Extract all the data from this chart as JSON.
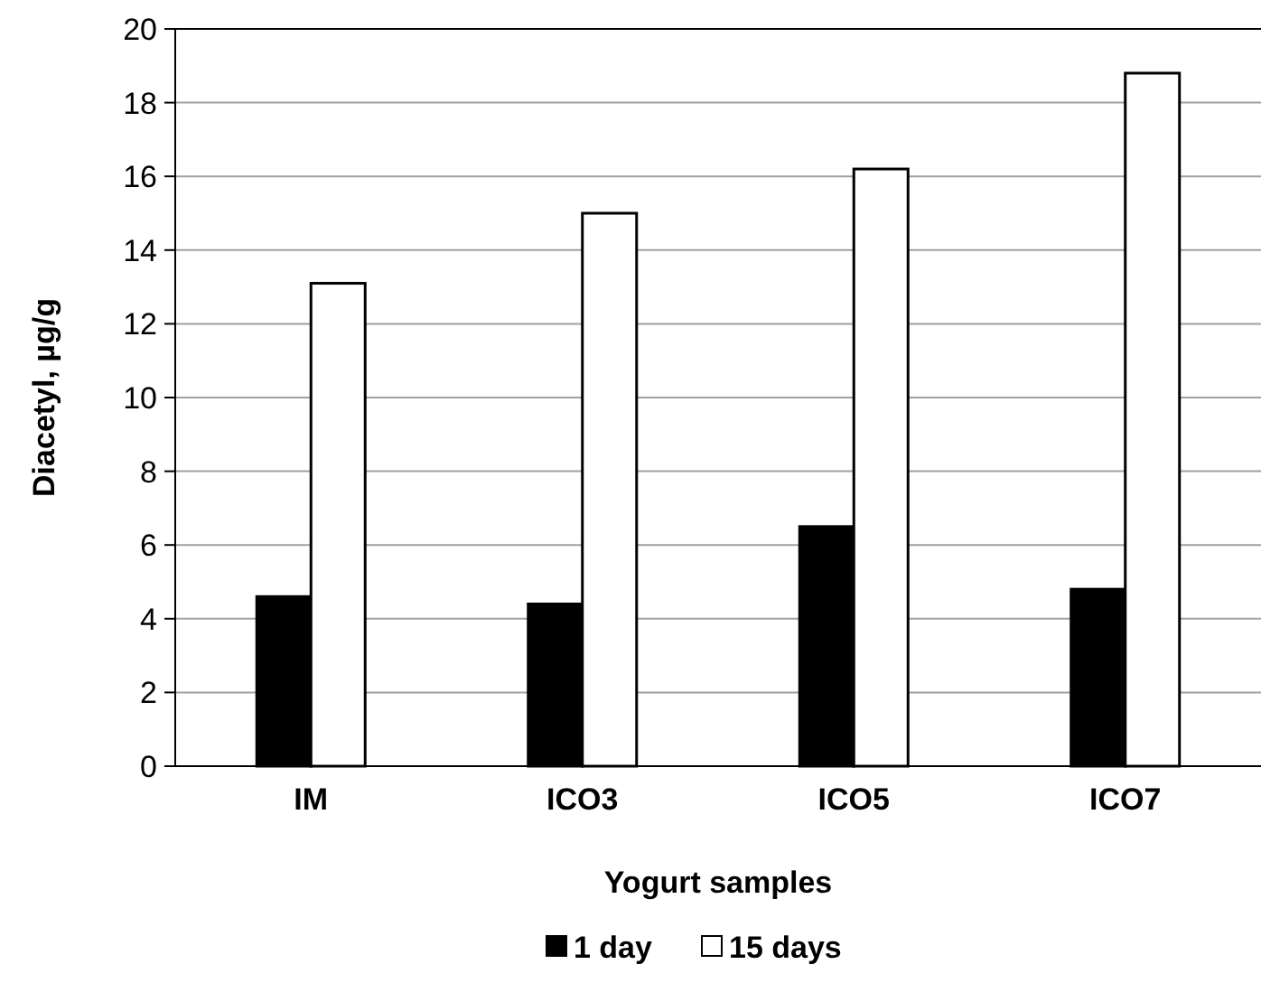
{
  "chart_data": {
    "type": "bar",
    "xlabel": "Yogurt samples",
    "ylabel": "Diacetyl, µg/g",
    "categories": [
      "IM",
      "ICO3",
      "ICO5",
      "ICO7"
    ],
    "series": [
      {
        "name": "1 day",
        "color": "#000000",
        "values": [
          4.6,
          4.4,
          6.5,
          4.8
        ]
      },
      {
        "name": "15 days",
        "color": "#ffffff",
        "values": [
          13.1,
          15.0,
          16.2,
          18.8
        ]
      }
    ],
    "ylim": [
      0,
      20
    ],
    "yticks": [
      0,
      2,
      4,
      6,
      8,
      10,
      12,
      14,
      16,
      18,
      20
    ],
    "grid": "y",
    "legend": "bottom"
  }
}
